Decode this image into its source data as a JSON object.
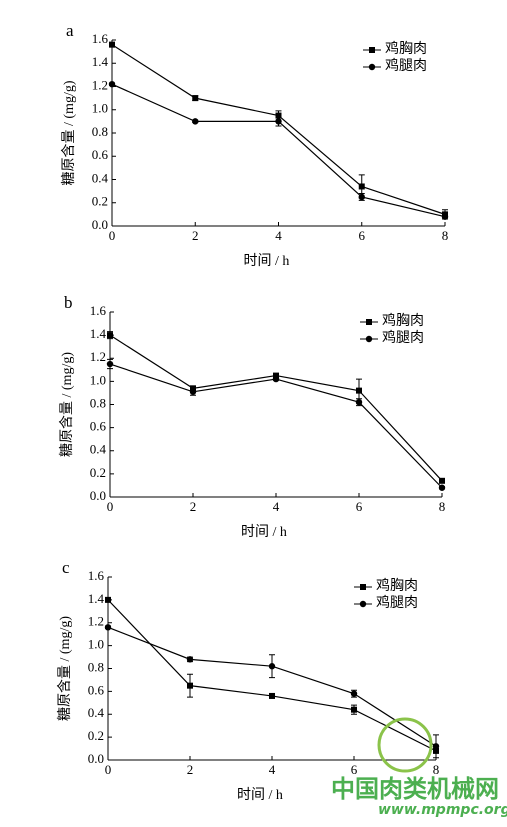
{
  "chart_data": [
    {
      "type": "line",
      "panel": "a",
      "xlabel": "时间 / h",
      "ylabel": "糖原含量 / (mg/g)",
      "x": [
        0,
        2,
        4,
        6,
        8
      ],
      "xlim": [
        0,
        8
      ],
      "xticks": [
        0,
        2,
        4,
        6,
        8
      ],
      "ylim": [
        0,
        1.6
      ],
      "yticks": [
        {
          "value": 0,
          "label": "0.0"
        },
        0.2,
        0.4,
        0.6,
        0.8,
        {
          "value": 1,
          "label": "1.0"
        },
        1.2,
        1.4,
        1.6
      ],
      "legend": "top-right",
      "series": [
        {
          "name": "鸡胸肉",
          "marker": "square",
          "color": "#000000",
          "values": [
            1.56,
            1.1,
            0.95,
            0.34,
            0.1
          ],
          "errors": [
            0.02,
            0.02,
            0.04,
            0.1,
            0.04
          ]
        },
        {
          "name": "鸡腿肉",
          "marker": "circle",
          "color": "#000000",
          "values": [
            1.22,
            0.9,
            0.9,
            0.25,
            0.08
          ],
          "errors": [
            0.01,
            0.01,
            0.04,
            0.03,
            0.02
          ]
        }
      ]
    },
    {
      "type": "line",
      "panel": "b",
      "xlabel": "时间 / h",
      "ylabel": "糖原含量 / (mg/g)",
      "x": [
        0,
        2,
        4,
        6,
        8
      ],
      "xlim": [
        0,
        8
      ],
      "xticks": [
        0,
        2,
        4,
        6,
        8
      ],
      "ylim": [
        0,
        1.6
      ],
      "yticks": [
        {
          "value": 0,
          "label": "0.0"
        },
        0.2,
        0.4,
        0.6,
        0.8,
        {
          "value": 1,
          "label": "1.0"
        },
        1.2,
        1.4,
        1.6
      ],
      "legend": "top-right",
      "series": [
        {
          "name": "鸡胸肉",
          "marker": "square",
          "color": "#000000",
          "values": [
            1.4,
            0.94,
            1.05,
            0.92,
            0.14
          ],
          "errors": [
            0.03,
            0.02,
            0.01,
            0.1,
            0.01
          ]
        },
        {
          "name": "鸡腿肉",
          "marker": "circle",
          "color": "#000000",
          "values": [
            1.15,
            0.91,
            1.02,
            0.82,
            0.08
          ],
          "errors": [
            0.04,
            0.03,
            0.01,
            0.03,
            0.01
          ]
        }
      ]
    },
    {
      "type": "line",
      "panel": "c",
      "xlabel": "时间 / h",
      "ylabel": "糖原含量 / (mg/g)",
      "x": [
        0,
        2,
        4,
        6,
        8
      ],
      "xlim": [
        0,
        8
      ],
      "xticks": [
        0,
        2,
        4,
        6,
        8
      ],
      "ylim": [
        0,
        1.6
      ],
      "yticks": [
        {
          "value": 0,
          "label": "0.0"
        },
        0.2,
        0.4,
        0.6,
        0.8,
        {
          "value": 1,
          "label": "1.0"
        },
        1.2,
        1.4,
        1.6
      ],
      "legend": "top-right",
      "series": [
        {
          "name": "鸡胸肉",
          "marker": "square",
          "color": "#000000",
          "values": [
            1.4,
            0.65,
            0.56,
            0.44,
            0.08
          ],
          "errors": [
            0.01,
            0.1,
            0.01,
            0.04,
            0.02
          ]
        },
        {
          "name": "鸡腿肉",
          "marker": "circle",
          "color": "#000000",
          "values": [
            1.16,
            0.88,
            0.82,
            0.58,
            0.12
          ],
          "errors": [
            0.01,
            0.02,
            0.1,
            0.03,
            0.1
          ]
        }
      ]
    }
  ],
  "watermark": {
    "title": "中国肉类机械网",
    "url": "www.mpmpc.org"
  }
}
